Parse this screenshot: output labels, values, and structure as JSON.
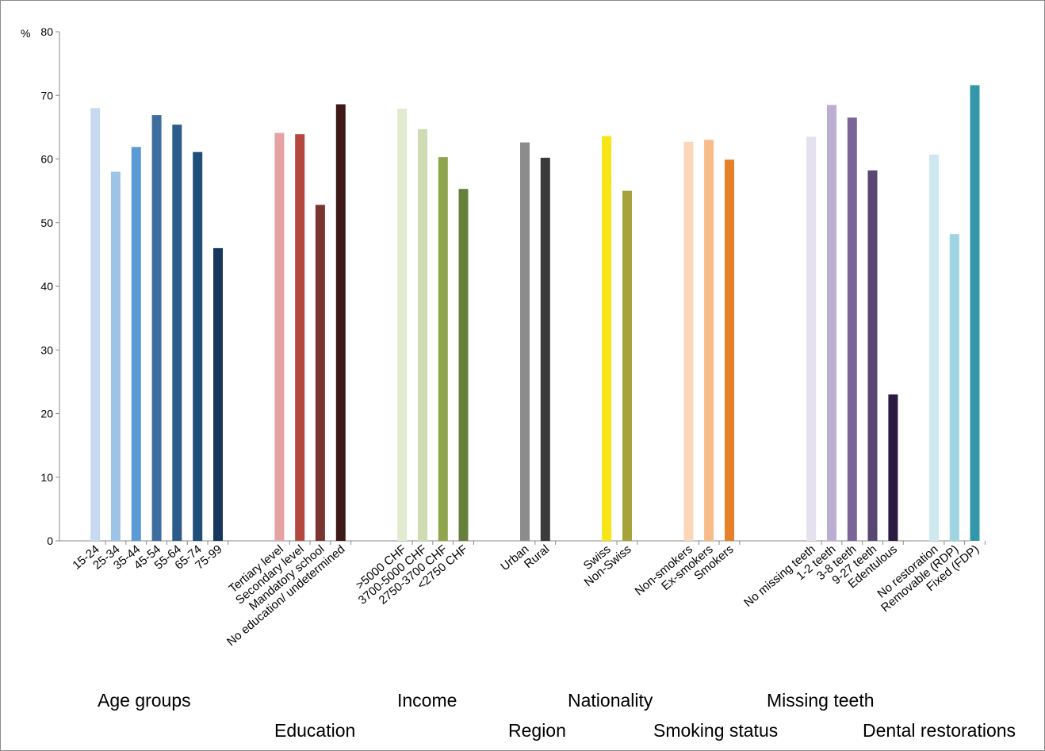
{
  "chart_data": {
    "type": "bar",
    "ylabel": "%",
    "ylim": [
      0,
      80
    ],
    "yticks": [
      0,
      10,
      20,
      30,
      40,
      50,
      60,
      70,
      80
    ],
    "grid": false,
    "legend": "none",
    "groups": [
      {
        "name": "Age groups",
        "bars": [
          {
            "label": "15-24",
            "value": 68.0,
            "color": "#c6d9f0"
          },
          {
            "label": "25-34",
            "value": 58.0,
            "color": "#9dc3e6"
          },
          {
            "label": "35-44",
            "value": 61.9,
            "color": "#5b9bd5"
          },
          {
            "label": "45-54",
            "value": 66.9,
            "color": "#3e6ea0"
          },
          {
            "label": "55-64",
            "value": 65.4,
            "color": "#2e5c8a"
          },
          {
            "label": "65-74",
            "value": 61.1,
            "color": "#1f4e79"
          },
          {
            "label": "75-99",
            "value": 46.0,
            "color": "#17375e"
          }
        ]
      },
      {
        "name": "Education",
        "bars": [
          {
            "label": "Tertiary level",
            "value": 64.1,
            "color": "#e6a3a3"
          },
          {
            "label": "Secondary level",
            "value": 63.9,
            "color": "#b5483e"
          },
          {
            "label": "Mandatory school",
            "value": 52.8,
            "color": "#7b3530"
          },
          {
            "label": "No education/ undetermined",
            "value": 68.6,
            "color": "#3d1a17"
          }
        ]
      },
      {
        "name": "Income",
        "bars": [
          {
            "label": ">5000 CHF",
            "value": 67.9,
            "color": "#e2ead0"
          },
          {
            "label": "3700-5000 CHF",
            "value": 64.7,
            "color": "#cfdcb3"
          },
          {
            "label": "2750-3700 CHF",
            "value": 60.3,
            "color": "#8ea54d"
          },
          {
            "label": "<2750 CHF",
            "value": 55.3,
            "color": "#64803a"
          }
        ]
      },
      {
        "name": "Region",
        "bars": [
          {
            "label": "Urban",
            "value": 62.6,
            "color": "#8c8c8c"
          },
          {
            "label": "Rural",
            "value": 60.2,
            "color": "#3a3a3a"
          }
        ]
      },
      {
        "name": "Nationality",
        "bars": [
          {
            "label": "Swiss",
            "value": 63.6,
            "color": "#f7e516"
          },
          {
            "label": "Non-Swiss",
            "value": 55.0,
            "color": "#a6a33a"
          }
        ]
      },
      {
        "name": "Smoking status",
        "bars": [
          {
            "label": "Non-smokers",
            "value": 62.7,
            "color": "#fbd6b8"
          },
          {
            "label": "Ex-smokers",
            "value": 63.0,
            "color": "#f8bc8a"
          },
          {
            "label": "Smokers",
            "value": 59.9,
            "color": "#e8802a"
          }
        ]
      },
      {
        "name": "Missing teeth",
        "bars": [
          {
            "label": "No missing teeth",
            "value": 63.5,
            "color": "#e5e1ee"
          },
          {
            "label": "1-2 teeth",
            "value": 68.5,
            "color": "#bcaed3"
          },
          {
            "label": "3-8 teeth",
            "value": 66.5,
            "color": "#7b6497"
          },
          {
            "label": "9-27 teeth",
            "value": 58.2,
            "color": "#5a4672"
          },
          {
            "label": "Edentulous",
            "value": 23.0,
            "color": "#2b1a42"
          }
        ]
      },
      {
        "name": "Dental restorations",
        "bars": [
          {
            "label": "No restoration",
            "value": 60.7,
            "color": "#cde8ef"
          },
          {
            "label": "Removable (RDP)",
            "value": 48.2,
            "color": "#9fd4e3"
          },
          {
            "label": "Fixed (FDP)",
            "value": 71.6,
            "color": "#3397aa"
          }
        ]
      }
    ]
  }
}
